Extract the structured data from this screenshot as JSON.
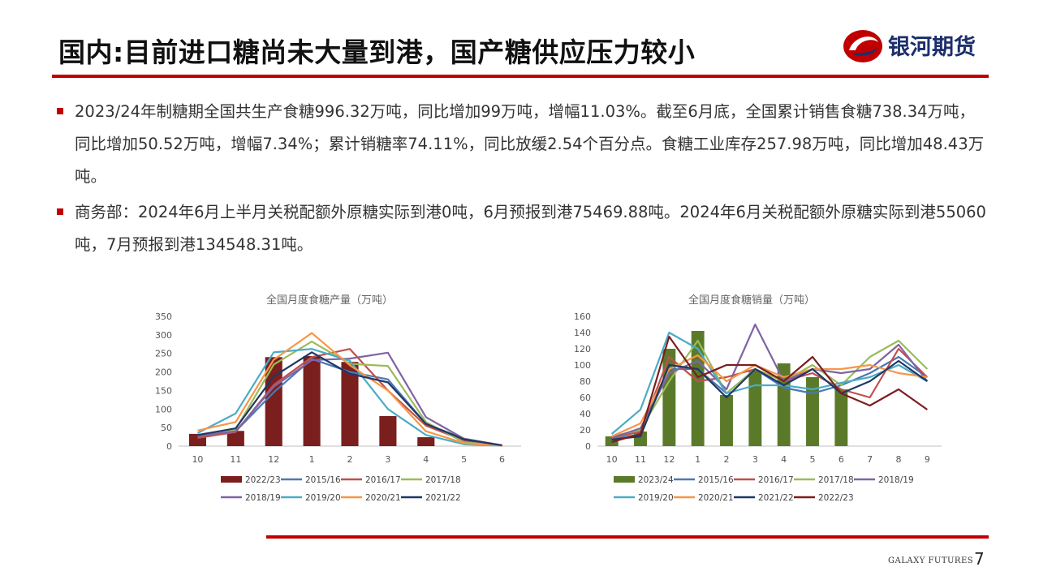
{
  "slide": {
    "title": "国内:目前进口糖尚未大量到港，国产糖供应压力较小",
    "logo_text": "银河期货",
    "bullets": [
      "2023/24年制糖期全国共生产食糖996.32万吨，同比增加99万吨，增幅11.03%。截至6月底，全国累计销售食糖738.34万吨，同比增加50.52万吨，增幅7.34%；累计销糖率74.11%，同比放缓2.54个百分点。食糖工业库存257.98万吨，同比增加48.43万吨。",
      "商务部：2024年6月上半月关税配额外原糖实际到港0吨，6月预报到港75469.88吨。2024年6月关税配额外原糖实际到港55060吨，7月预报到港134548.31吨。"
    ],
    "footer": "GALAXY FUTURES",
    "page_number": "7",
    "colors": {
      "accent": "#c00000",
      "logo_blue": "#1c2f6b"
    }
  },
  "chart_data": [
    {
      "type": "bar+line",
      "title": "全国月度食糖产量（万吨）",
      "categories": [
        "10",
        "11",
        "12",
        "1",
        "2",
        "3",
        "4",
        "5",
        "6"
      ],
      "ylim": [
        0,
        350
      ],
      "yticks": [
        0,
        50,
        100,
        150,
        200,
        250,
        300,
        350
      ],
      "bar_series": {
        "name": "2022/23",
        "color": "#7b1e1e",
        "values": [
          33,
          41,
          240,
          243,
          227,
          81,
          24,
          null,
          null
        ]
      },
      "line_series": [
        {
          "name": "2015/16",
          "color": "#4a78b5",
          "values": [
            25,
            40,
            145,
            235,
            200,
            180,
            60,
            20,
            2
          ]
        },
        {
          "name": "2016/17",
          "color": "#c0504d",
          "values": [
            22,
            38,
            165,
            240,
            262,
            150,
            55,
            15,
            2
          ]
        },
        {
          "name": "2017/18",
          "color": "#9bbb59",
          "values": [
            30,
            45,
            220,
            282,
            222,
            216,
            65,
            10,
            2
          ]
        },
        {
          "name": "2018/19",
          "color": "#8064a2",
          "values": [
            28,
            40,
            160,
            232,
            236,
            252,
            78,
            20,
            2
          ]
        },
        {
          "name": "2019/20",
          "color": "#4bacc6",
          "values": [
            35,
            88,
            253,
            262,
            230,
            100,
            30,
            5,
            1
          ]
        },
        {
          "name": "2020/21",
          "color": "#f79646",
          "values": [
            42,
            65,
            233,
            305,
            218,
            150,
            40,
            8,
            1
          ]
        },
        {
          "name": "2021/22",
          "color": "#1f3864",
          "values": [
            30,
            48,
            188,
            253,
            195,
            172,
            60,
            18,
            2
          ]
        }
      ]
    },
    {
      "type": "bar+line",
      "title": "全国月度食糖销量（万吨）",
      "categories": [
        "10",
        "11",
        "12",
        "1",
        "2",
        "3",
        "4",
        "5",
        "6",
        "7",
        "8",
        "9"
      ],
      "ylim": [
        0,
        160
      ],
      "yticks": [
        0,
        20,
        40,
        60,
        80,
        100,
        120,
        140,
        160
      ],
      "bar_series": {
        "name": "2023/24",
        "color": "#5a7a2a",
        "values": [
          12,
          18,
          120,
          142,
          63,
          93,
          102,
          85,
          70,
          null,
          null,
          null
        ]
      },
      "line_series": [
        {
          "name": "2015/16",
          "color": "#4a78b5",
          "values": [
            8,
            15,
            95,
            95,
            65,
            95,
            72,
            65,
            75,
            90,
            110,
            85
          ]
        },
        {
          "name": "2016/17",
          "color": "#c0504d",
          "values": [
            10,
            18,
            110,
            80,
            85,
            95,
            80,
            90,
            70,
            60,
            120,
            85
          ]
        },
        {
          "name": "2017/18",
          "color": "#9bbb59",
          "values": [
            12,
            20,
            80,
            130,
            65,
            95,
            80,
            100,
            75,
            110,
            130,
            95
          ]
        },
        {
          "name": "2018/19",
          "color": "#8064a2",
          "values": [
            10,
            22,
            90,
            105,
            70,
            150,
            80,
            95,
            90,
            95,
            125,
            80
          ]
        },
        {
          "name": "2019/20",
          "color": "#4bacc6",
          "values": [
            15,
            45,
            140,
            120,
            65,
            75,
            75,
            70,
            78,
            85,
            100,
            80
          ]
        },
        {
          "name": "2020/21",
          "color": "#f79646",
          "values": [
            12,
            28,
            95,
            112,
            80,
            100,
            85,
            95,
            95,
            100,
            90,
            85
          ]
        },
        {
          "name": "2021/22",
          "color": "#1f3864",
          "values": [
            8,
            12,
            100,
            95,
            60,
            95,
            75,
            95,
            65,
            80,
            105,
            80
          ]
        },
        {
          "name": "2022/23",
          "color": "#7b1e1e",
          "values": [
            5,
            15,
            135,
            85,
            100,
            100,
            80,
            110,
            65,
            50,
            70,
            45
          ]
        }
      ]
    }
  ]
}
